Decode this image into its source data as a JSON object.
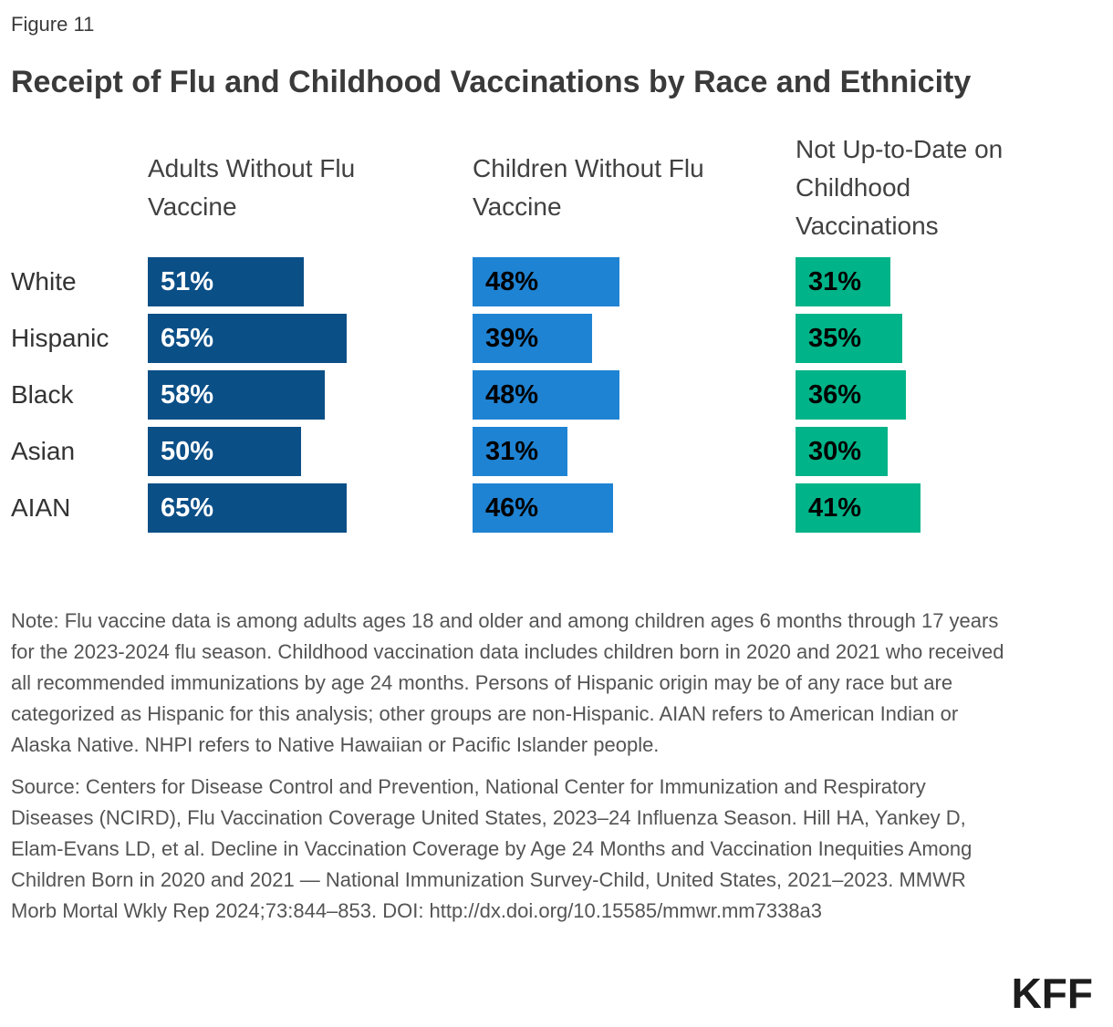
{
  "figure_label": "Figure 11",
  "title": "Receipt of Flu and Childhood Vaccinations by Race and Ethnicity",
  "chart_data": {
    "type": "bar",
    "orientation": "horizontal",
    "categories": [
      "White",
      "Hispanic",
      "Black",
      "Asian",
      "AIAN"
    ],
    "series": [
      {
        "name": "Adults Without Flu Vaccine",
        "color": "#0b4f87",
        "label_color": "#ffffff",
        "values": [
          51,
          65,
          58,
          50,
          65
        ]
      },
      {
        "name": "Children Without Flu Vaccine",
        "color": "#1f83d3",
        "label_color": "#000000",
        "values": [
          48,
          39,
          48,
          31,
          46
        ]
      },
      {
        "name": "Not Up-to-Date on Childhood Vaccinations",
        "color": "#00b388",
        "label_color": "#000000",
        "values": [
          31,
          35,
          36,
          30,
          41
        ]
      }
    ],
    "value_suffix": "%",
    "xlim": [
      0,
      100
    ],
    "grid": false,
    "legend_position": "column-headers",
    "data_labels": "inside-start"
  },
  "note": "Note: Flu vaccine data is among adults ages 18 and older and among children ages 6 months through 17 years for the 2023-2024 flu season. Childhood vaccination data includes children born in 2020 and 2021 who received all recommended immunizations by age 24 months. Persons of Hispanic origin may be of any race but are categorized as Hispanic for this analysis; other groups are non-Hispanic. AIAN refers to American Indian or Alaska Native. NHPI refers to Native Hawaiian or Pacific Islander people.",
  "source": "Source: Centers for Disease Control and Prevention, National Center for Immunization and Respiratory Diseases (NCIRD), Flu Vaccination Coverage United States, 2023–24 Influenza Season. Hill HA, Yankey D, Elam-Evans LD, et al. Decline in Vaccination Coverage by Age 24 Months and Vaccination Inequities Among Children Born in 2020 and 2021 — National Immunization Survey-Child, United States, 2021–2023. MMWR Morb Mortal Wkly Rep 2024;73:844–853. DOI: http://dx.doi.org/10.15585/mmwr.mm7338a3",
  "logo": "KFF"
}
